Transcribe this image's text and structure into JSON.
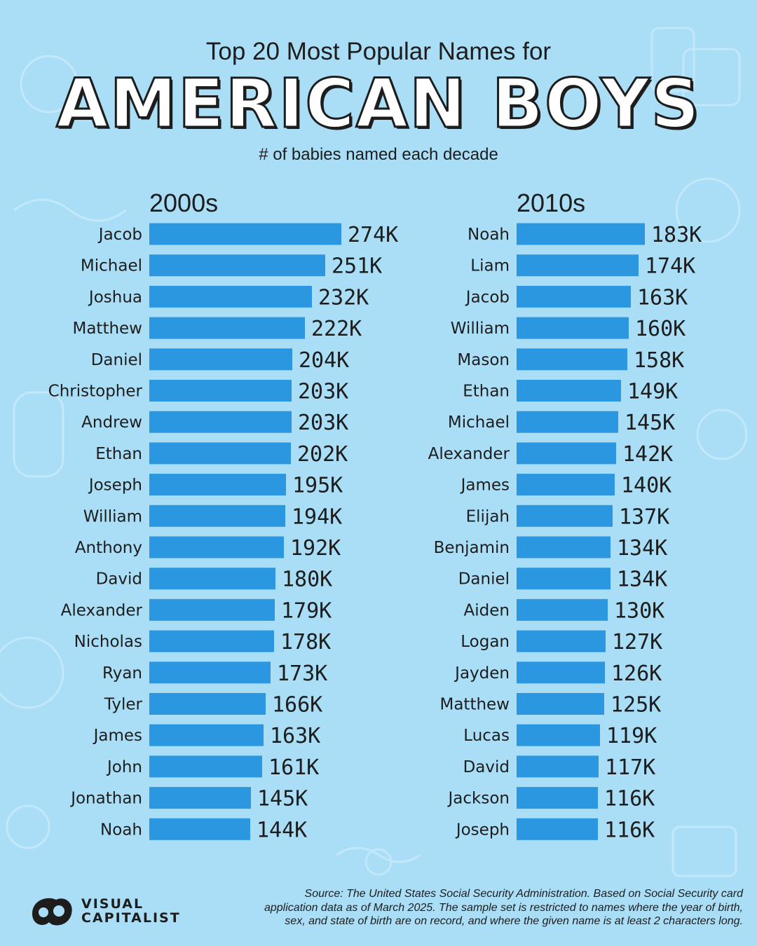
{
  "header": {
    "title_top": "Top 20 Most Popular Names for",
    "title_main": "AMERICAN BOYS",
    "subtitle": "# of babies named each decade"
  },
  "colors": {
    "background": "#a9def6",
    "bar": "#2b97e0",
    "text": "#1d1d1d"
  },
  "chart_data": [
    {
      "type": "bar",
      "title": "2000s",
      "unit_suffix": "K",
      "categories": [
        "Jacob",
        "Michael",
        "Joshua",
        "Matthew",
        "Daniel",
        "Christopher",
        "Andrew",
        "Ethan",
        "Joseph",
        "William",
        "Anthony",
        "David",
        "Alexander",
        "Nicholas",
        "Ryan",
        "Tyler",
        "James",
        "John",
        "Jonathan",
        "Noah"
      ],
      "values": [
        274,
        251,
        232,
        222,
        204,
        203,
        203,
        202,
        195,
        194,
        192,
        180,
        179,
        178,
        173,
        166,
        163,
        161,
        145,
        144
      ],
      "labels": [
        "274K",
        "251K",
        "232K",
        "222K",
        "204K",
        "203K",
        "203K",
        "202K",
        "195K",
        "194K",
        "192K",
        "180K",
        "179K",
        "178K",
        "173K",
        "166K",
        "163K",
        "161K",
        "145K",
        "144K"
      ]
    },
    {
      "type": "bar",
      "title": "2010s",
      "unit_suffix": "K",
      "categories": [
        "Noah",
        "Liam",
        "Jacob",
        "William",
        "Mason",
        "Ethan",
        "Michael",
        "Alexander",
        "James",
        "Elijah",
        "Benjamin",
        "Daniel",
        "Aiden",
        "Logan",
        "Jayden",
        "Matthew",
        "Lucas",
        "David",
        "Jackson",
        "Joseph"
      ],
      "values": [
        183,
        174,
        163,
        160,
        158,
        149,
        145,
        142,
        140,
        137,
        134,
        134,
        130,
        127,
        126,
        125,
        119,
        117,
        116,
        116
      ],
      "labels": [
        "183K",
        "174K",
        "163K",
        "160K",
        "158K",
        "149K",
        "145K",
        "142K",
        "140K",
        "137K",
        "134K",
        "134K",
        "130K",
        "127K",
        "126K",
        "125K",
        "119K",
        "117K",
        "116K",
        "116K"
      ]
    }
  ],
  "footer": {
    "logo_line1": "VISUAL",
    "logo_line2": "CAPITALIST",
    "source_line1": "Source: The United States Social Security Administration. Based on Social Security card",
    "source_line2": "application data as of March 2025. The sample set is restricted to names where the year of birth,",
    "source_line3": "sex, and state of birth are on record, and where the given name is at least 2 characters long."
  }
}
